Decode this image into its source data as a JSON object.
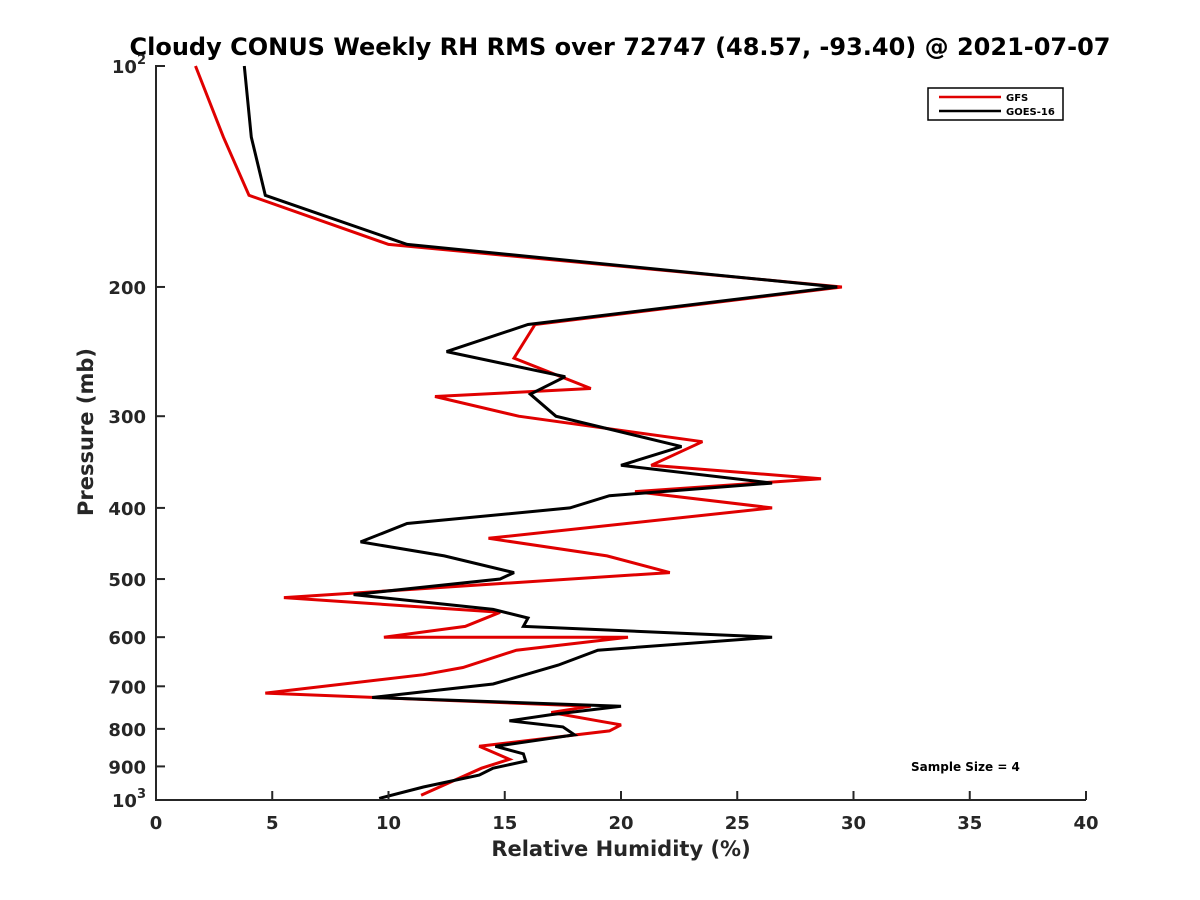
{
  "chart_data": {
    "type": "line",
    "title": "Cloudy CONUS Weekly RH RMS over 72747 (48.57, -93.40) @ 2021-07-07",
    "xlabel": "Relative Humidity (%)",
    "ylabel": "Pressure (mb)",
    "xlim": [
      0,
      40
    ],
    "ylim": [
      100,
      1000
    ],
    "yscale": "log",
    "yreversed": true,
    "x_ticks": [
      "0",
      "5",
      "10",
      "15",
      "20",
      "25",
      "30",
      "35",
      "40"
    ],
    "y_ticks": [
      {
        "value": 100,
        "base": "10",
        "exp": "2"
      },
      {
        "value": 200,
        "label": "200"
      },
      {
        "value": 300,
        "label": "300"
      },
      {
        "value": 400,
        "label": "400"
      },
      {
        "value": 500,
        "label": "500"
      },
      {
        "value": 600,
        "label": "600"
      },
      {
        "value": 700,
        "label": "700"
      },
      {
        "value": 800,
        "label": "800"
      },
      {
        "value": 900,
        "label": "900"
      },
      {
        "value": 1000,
        "base": "10",
        "exp": "3"
      }
    ],
    "legend_position": "top-right",
    "annotation": "Sample Size = 4",
    "series": [
      {
        "name": "GFS",
        "color": "#e00000",
        "points": [
          [
            1.7,
            100
          ],
          [
            2.9,
            125
          ],
          [
            4.0,
            150
          ],
          [
            10.0,
            175
          ],
          [
            29.5,
            200
          ],
          [
            16.3,
            225
          ],
          [
            15.4,
            250
          ],
          [
            18.7,
            275
          ],
          [
            12.0,
            282
          ],
          [
            15.6,
            300
          ],
          [
            23.5,
            325
          ],
          [
            21.3,
            350
          ],
          [
            28.6,
            365
          ],
          [
            20.6,
            380
          ],
          [
            26.5,
            400
          ],
          [
            14.3,
            440
          ],
          [
            19.4,
            465
          ],
          [
            22.1,
            490
          ],
          [
            5.5,
            530
          ],
          [
            14.8,
            555
          ],
          [
            13.3,
            580
          ],
          [
            9.8,
            600
          ],
          [
            20.3,
            600
          ],
          [
            15.5,
            625
          ],
          [
            13.2,
            660
          ],
          [
            11.5,
            675
          ],
          [
            4.7,
            715
          ],
          [
            18.7,
            745
          ],
          [
            17.0,
            760
          ],
          [
            19.0,
            780
          ],
          [
            20.0,
            790
          ],
          [
            19.5,
            805
          ],
          [
            13.9,
            845
          ],
          [
            15.2,
            880
          ],
          [
            14.0,
            905
          ],
          [
            11.4,
            985
          ]
        ]
      },
      {
        "name": "GOES-16",
        "color": "#000000",
        "points": [
          [
            3.8,
            100
          ],
          [
            4.1,
            125
          ],
          [
            4.7,
            150
          ],
          [
            10.8,
            175
          ],
          [
            29.3,
            200
          ],
          [
            16.0,
            225
          ],
          [
            12.5,
            245
          ],
          [
            17.6,
            265
          ],
          [
            16.1,
            280
          ],
          [
            17.2,
            300
          ],
          [
            22.6,
            330
          ],
          [
            20.0,
            350
          ],
          [
            26.5,
            370
          ],
          [
            19.5,
            385
          ],
          [
            17.8,
            400
          ],
          [
            10.8,
            420
          ],
          [
            8.8,
            445
          ],
          [
            12.4,
            465
          ],
          [
            15.4,
            490
          ],
          [
            14.8,
            500
          ],
          [
            8.5,
            525
          ],
          [
            14.5,
            550
          ],
          [
            16.0,
            565
          ],
          [
            15.8,
            580
          ],
          [
            26.5,
            600
          ],
          [
            19.0,
            625
          ],
          [
            17.3,
            655
          ],
          [
            14.5,
            695
          ],
          [
            9.3,
            725
          ],
          [
            20.0,
            745
          ],
          [
            17.0,
            765
          ],
          [
            15.2,
            780
          ],
          [
            17.5,
            795
          ],
          [
            18.0,
            815
          ],
          [
            14.6,
            845
          ],
          [
            15.8,
            865
          ],
          [
            15.9,
            885
          ],
          [
            14.5,
            905
          ],
          [
            13.9,
            925
          ],
          [
            11.5,
            960
          ],
          [
            9.6,
            995
          ]
        ]
      }
    ]
  }
}
